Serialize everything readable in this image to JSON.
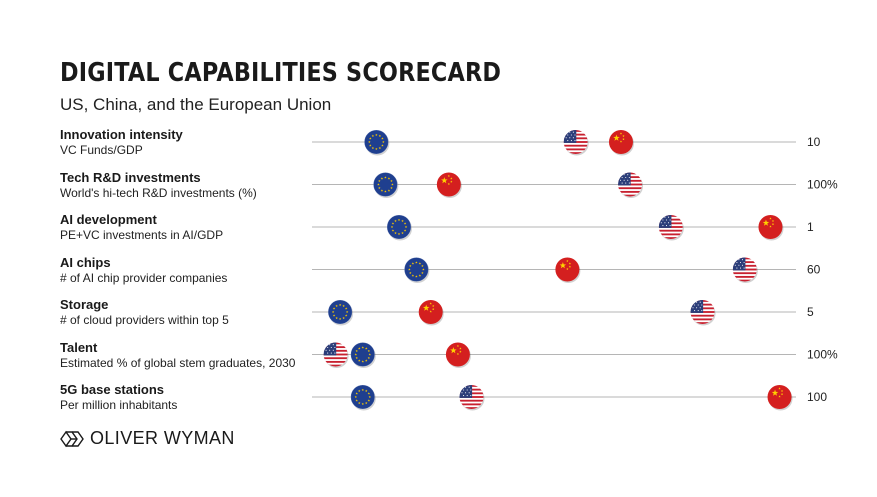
{
  "header": {
    "title": "DIGITAL CAPABILITIES SCORECARD",
    "subtitle": "US, China, and the European Union"
  },
  "brand": {
    "name": "OLIVER WYMAN",
    "logo_icon": "oliver-wyman-logo-icon"
  },
  "colors": {
    "eu_blue": "#1f3f8f",
    "eu_star": "#f4c400",
    "china_red": "#d41f1f",
    "china_star": "#ffd100",
    "us_red": "#c8202f",
    "us_blue": "#2c3e7a",
    "line": "#b5b5b5"
  },
  "chart_data": {
    "type": "scatter",
    "title": "DIGITAL CAPABILITIES SCORECARD",
    "subtitle": "US, China, and the European Union",
    "legend": "none",
    "series_keys": [
      "EU",
      "US",
      "China"
    ],
    "rows": [
      {
        "name": "Innovation intensity",
        "desc": "VC Funds/GDP",
        "max_label": "10",
        "xlim": [
          0,
          10
        ],
        "values": {
          "EU": 1.2,
          "US": 5.6,
          "China": 6.6
        }
      },
      {
        "name": "Tech R&D investments",
        "desc": "World's hi-tech R&D investments (%)",
        "max_label": "100%",
        "xlim": [
          0,
          100
        ],
        "values": {
          "EU": 14,
          "China": 28,
          "US": 68
        }
      },
      {
        "name": "AI development",
        "desc": "PE+VC investments in AI/GDP",
        "max_label": "1",
        "xlim": [
          0,
          1
        ],
        "values": {
          "EU": 0.17,
          "US": 0.77,
          "China": 0.99
        }
      },
      {
        "name": "AI chips",
        "desc": "# of AI chip provider companies",
        "max_label": "60",
        "xlim": [
          0,
          60
        ],
        "values": {
          "EU": 12.5,
          "China": 32.5,
          "US": 56
        }
      },
      {
        "name": "Storage",
        "desc": "# of cloud providers within top 5",
        "max_label": "5",
        "xlim": [
          0,
          5
        ],
        "values": {
          "EU": 0.2,
          "China": 1.2,
          "US": 4.2
        }
      },
      {
        "name": "Talent",
        "desc": "Estimated % of global stem graduates, 2030",
        "max_label": "100%",
        "xlim": [
          0,
          100
        ],
        "values": {
          "US": 3,
          "EU": 9,
          "China": 30
        }
      },
      {
        "name": "5G base stations",
        "desc": "Per million inhabitants",
        "max_label": "100",
        "xlim": [
          0,
          100
        ],
        "values": {
          "EU": 9,
          "US": 33,
          "China": 101
        }
      }
    ]
  }
}
